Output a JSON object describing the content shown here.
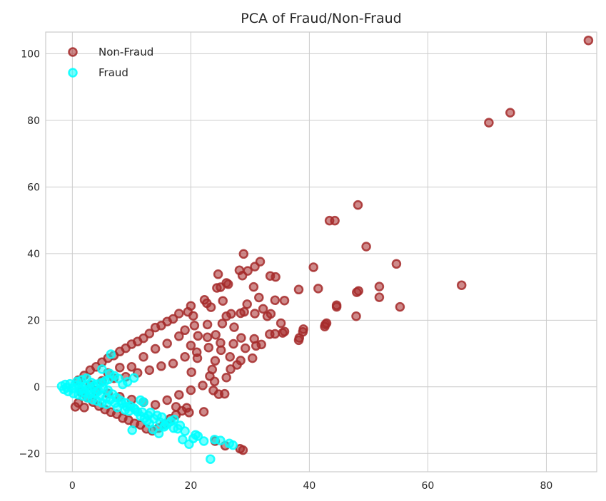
{
  "chart_data": {
    "type": "scatter",
    "title": "PCA of Fraud/Non-Fraud",
    "xlabel": "",
    "ylabel": "",
    "xlim": [
      -4.5,
      88.5
    ],
    "ylim": [
      -25.5,
      106.5
    ],
    "x_ticks": [
      0,
      20,
      40,
      60,
      80
    ],
    "y_ticks": [
      -20,
      0,
      20,
      40,
      60,
      80,
      100
    ],
    "grid": true,
    "legend_position": "top-left",
    "series": [
      {
        "name": "Non-Fraud",
        "color": "#a52a2a",
        "points": [
          [
            87.1,
            104.0
          ],
          [
            70.3,
            79.3
          ],
          [
            73.9,
            82.3
          ],
          [
            48.2,
            54.6
          ],
          [
            43.4,
            49.9
          ],
          [
            44.3,
            49.9
          ],
          [
            49.6,
            42.1
          ],
          [
            54.7,
            36.9
          ],
          [
            40.7,
            35.9
          ],
          [
            65.7,
            30.5
          ],
          [
            51.8,
            30.1
          ],
          [
            51.8,
            26.9
          ],
          [
            55.3,
            24.0
          ],
          [
            48.0,
            28.4
          ],
          [
            48.3,
            28.8
          ],
          [
            41.5,
            29.5
          ],
          [
            38.2,
            29.2
          ],
          [
            44.6,
            24.0
          ],
          [
            44.6,
            24.5
          ],
          [
            47.9,
            21.2
          ],
          [
            42.6,
            18.1
          ],
          [
            42.9,
            19.1
          ],
          [
            42.7,
            18.7
          ],
          [
            38.9,
            16.5
          ],
          [
            39.0,
            17.3
          ],
          [
            38.3,
            14.7
          ],
          [
            38.2,
            14.0
          ],
          [
            35.5,
            16.2
          ],
          [
            35.8,
            16.6
          ],
          [
            35.2,
            19.1
          ],
          [
            34.2,
            15.9
          ],
          [
            33.3,
            15.8
          ],
          [
            32.9,
            21.2
          ],
          [
            33.5,
            21.9
          ],
          [
            32.2,
            23.4
          ],
          [
            30.8,
            22.0
          ],
          [
            31.5,
            26.8
          ],
          [
            30.6,
            30.0
          ],
          [
            29.5,
            24.8
          ],
          [
            29.0,
            22.5
          ],
          [
            28.4,
            22.1
          ],
          [
            31.7,
            37.6
          ],
          [
            30.8,
            36.1
          ],
          [
            29.6,
            34.8
          ],
          [
            28.7,
            33.4
          ],
          [
            28.9,
            39.9
          ],
          [
            28.2,
            35.0
          ],
          [
            33.4,
            33.3
          ],
          [
            34.3,
            33.0
          ],
          [
            34.2,
            26.0
          ],
          [
            35.8,
            25.9
          ],
          [
            26.8,
            21.9
          ],
          [
            26.0,
            31.2
          ],
          [
            25.0,
            29.9
          ],
          [
            24.4,
            29.7
          ],
          [
            25.4,
            25.8
          ],
          [
            26.3,
            30.8
          ],
          [
            24.6,
            33.8
          ],
          [
            22.3,
            26.1
          ],
          [
            22.7,
            25.1
          ],
          [
            23.4,
            23.9
          ],
          [
            27.3,
            17.9
          ],
          [
            30.7,
            14.4
          ],
          [
            31.0,
            12.3
          ],
          [
            31.9,
            12.7
          ],
          [
            30.4,
            8.6
          ],
          [
            29.2,
            11.6
          ],
          [
            28.5,
            14.7
          ],
          [
            27.2,
            12.9
          ],
          [
            25.1,
            11.0
          ],
          [
            26.6,
            9.0
          ],
          [
            27.8,
            6.6
          ],
          [
            28.4,
            7.9
          ],
          [
            26.7,
            5.3
          ],
          [
            24.1,
            7.8
          ],
          [
            23.6,
            5.2
          ],
          [
            23.2,
            3.2
          ],
          [
            22.8,
            14.9
          ],
          [
            21.2,
            15.3
          ],
          [
            20.4,
            21.3
          ],
          [
            20.0,
            24.3
          ],
          [
            19.5,
            22.5
          ],
          [
            20.6,
            18.4
          ],
          [
            24.2,
            15.6
          ],
          [
            25.3,
            19.0
          ],
          [
            26.0,
            21.2
          ],
          [
            22.8,
            18.7
          ],
          [
            21.1,
            8.6
          ],
          [
            20.1,
            4.4
          ],
          [
            25.7,
            -2.1
          ],
          [
            24.7,
            -2.2
          ],
          [
            23.8,
            -1.1
          ],
          [
            22.2,
            -7.5
          ],
          [
            19.3,
            -6.3
          ],
          [
            17.5,
            -6.0
          ],
          [
            28.8,
            -19.0
          ],
          [
            28.3,
            -18.6
          ],
          [
            25.8,
            -17.7
          ],
          [
            24.1,
            -16.3
          ],
          [
            19.7,
            -7.7
          ],
          [
            1.0,
            2.0
          ],
          [
            2.0,
            3.4
          ],
          [
            3.0,
            5.0
          ],
          [
            4.0,
            6.0
          ],
          [
            5.0,
            7.4
          ],
          [
            6.0,
            8.6
          ],
          [
            7.0,
            9.4
          ],
          [
            8.0,
            10.6
          ],
          [
            9.0,
            11.6
          ],
          [
            10.0,
            12.8
          ],
          [
            11.0,
            13.6
          ],
          [
            12.0,
            14.6
          ],
          [
            13.0,
            16.0
          ],
          [
            14.0,
            17.8
          ],
          [
            15.0,
            18.4
          ],
          [
            16.0,
            19.6
          ],
          [
            17.0,
            20.4
          ],
          [
            18.0,
            22.0
          ],
          [
            1.5,
            -1.6
          ],
          [
            2.5,
            -3.2
          ],
          [
            3.5,
            -4.6
          ],
          [
            4.5,
            -5.8
          ],
          [
            5.5,
            -6.8
          ],
          [
            6.5,
            -7.6
          ],
          [
            7.5,
            -8.2
          ],
          [
            8.5,
            -9.4
          ],
          [
            9.5,
            -10.0
          ],
          [
            10.5,
            -11.0
          ],
          [
            11.5,
            -11.4
          ],
          [
            12.5,
            -12.6
          ],
          [
            13.5,
            -13.2
          ],
          [
            14.5,
            -12.4
          ],
          [
            15.5,
            -11.2
          ],
          [
            16.5,
            -9.6
          ],
          [
            17.5,
            -8.4
          ],
          [
            18.5,
            -7.2
          ],
          [
            3.0,
            0.6
          ],
          [
            5.0,
            1.8
          ],
          [
            7.0,
            2.6
          ],
          [
            9.0,
            3.0
          ],
          [
            11.0,
            4.2
          ],
          [
            13.0,
            5.0
          ],
          [
            15.0,
            6.2
          ],
          [
            17.0,
            7.0
          ],
          [
            19.0,
            9.0
          ],
          [
            21.0,
            10.4
          ],
          [
            23.0,
            11.8
          ],
          [
            25.0,
            13.2
          ],
          [
            4.0,
            -1.2
          ],
          [
            6.0,
            -2.0
          ],
          [
            8.0,
            -3.0
          ],
          [
            10.0,
            -3.8
          ],
          [
            12.0,
            -4.6
          ],
          [
            14.0,
            -5.4
          ],
          [
            16.0,
            -4.0
          ],
          [
            18.0,
            -2.4
          ],
          [
            20.0,
            -1.0
          ],
          [
            22.0,
            0.4
          ],
          [
            24.0,
            1.6
          ],
          [
            26.0,
            2.8
          ],
          [
            12.0,
            9.0
          ],
          [
            14.0,
            11.4
          ],
          [
            16.0,
            13.0
          ],
          [
            18.0,
            15.2
          ],
          [
            20.0,
            12.4
          ],
          [
            19.0,
            17.0
          ],
          [
            10.0,
            6.0
          ],
          [
            8.0,
            5.8
          ],
          [
            6.0,
            4.2
          ],
          [
            2.0,
            -6.2
          ],
          [
            0.5,
            -6.0
          ],
          [
            1.0,
            -4.8
          ]
        ]
      },
      {
        "name": "Fraud",
        "color": "#00ffff",
        "points": [
          [
            23.3,
            -21.7
          ],
          [
            22.2,
            -16.3
          ],
          [
            25.0,
            -16.1
          ],
          [
            26.5,
            -17.0
          ],
          [
            27.1,
            -17.5
          ],
          [
            20.4,
            -15.5
          ],
          [
            19.7,
            -17.2
          ],
          [
            18.6,
            -15.8
          ],
          [
            20.8,
            -14.4
          ],
          [
            19.0,
            -13.3
          ],
          [
            17.1,
            -12.4
          ],
          [
            15.5,
            -12.0
          ],
          [
            15.6,
            -11.6
          ],
          [
            14.6,
            -14.0
          ],
          [
            13.6,
            -12.8
          ],
          [
            13.0,
            -11.0
          ],
          [
            12.2,
            -9.4
          ],
          [
            12.6,
            -10.2
          ],
          [
            11.5,
            -8.8
          ],
          [
            10.1,
            -13.0
          ],
          [
            9.2,
            -6.0
          ],
          [
            10.4,
            -6.4
          ],
          [
            8.4,
            -5.0
          ],
          [
            7.6,
            -6.2
          ],
          [
            11.5,
            -4.0
          ],
          [
            12.0,
            -4.6
          ],
          [
            10.4,
            2.7
          ],
          [
            9.3,
            1.5
          ],
          [
            8.5,
            0.7
          ],
          [
            6.5,
            9.8
          ],
          [
            5.0,
            5.3
          ],
          [
            6.3,
            4.0
          ],
          [
            6.1,
            2.2
          ],
          [
            5.5,
            1.7
          ],
          [
            4.8,
            1.2
          ],
          [
            7.1,
            3.3
          ],
          [
            7.8,
            2.5
          ],
          [
            16.6,
            -10.4
          ],
          [
            17.2,
            -9.8
          ],
          [
            14.3,
            -8.6
          ],
          [
            15.1,
            -9.1
          ],
          [
            13.2,
            -7.7
          ],
          [
            11.0,
            -7.5
          ],
          [
            9.6,
            -7.3
          ],
          [
            8.9,
            -6.9
          ],
          [
            7.2,
            -4.9
          ],
          [
            6.4,
            -3.9
          ],
          [
            5.7,
            -3.4
          ],
          [
            4.7,
            -2.6
          ],
          [
            3.9,
            -2.0
          ],
          [
            3.2,
            -1.4
          ],
          [
            2.5,
            -0.9
          ],
          [
            1.8,
            -0.4
          ],
          [
            1.1,
            0.2
          ],
          [
            0.4,
            0.6
          ],
          [
            -0.4,
            0.9
          ],
          [
            -1.2,
            0.7
          ],
          [
            -1.8,
            0.2
          ],
          [
            -1.4,
            -0.8
          ],
          [
            -0.7,
            -1.4
          ],
          [
            0.2,
            -2.0
          ],
          [
            1.0,
            -2.4
          ],
          [
            1.8,
            -2.8
          ],
          [
            2.6,
            -3.3
          ],
          [
            3.4,
            -3.8
          ],
          [
            4.2,
            -4.3
          ],
          [
            5.0,
            -4.8
          ],
          [
            5.8,
            -5.2
          ],
          [
            0.8,
            1.6
          ],
          [
            1.6,
            2.1
          ],
          [
            2.4,
            2.6
          ],
          [
            3.2,
            1.3
          ],
          [
            4.0,
            0.8
          ],
          [
            0.0,
            -0.5
          ],
          [
            -1.0,
            -0.2
          ],
          [
            2.0,
            -1.6
          ],
          [
            3.0,
            -2.2
          ],
          [
            4.4,
            -1.2
          ],
          [
            5.2,
            -0.4
          ],
          [
            6.0,
            -1.0
          ],
          [
            6.8,
            -2.2
          ],
          [
            7.4,
            -3.2
          ],
          [
            8.2,
            -4.2
          ],
          [
            9.0,
            -4.8
          ],
          [
            9.8,
            -5.8
          ],
          [
            10.6,
            -6.8
          ],
          [
            11.8,
            -7.6
          ],
          [
            12.8,
            -8.6
          ],
          [
            13.8,
            -9.6
          ],
          [
            14.8,
            -10.6
          ],
          [
            16.0,
            -11.2
          ],
          [
            17.8,
            -12.6
          ],
          [
            18.2,
            -11.6
          ],
          [
            21.2,
            -14.8
          ],
          [
            24.0,
            -15.8
          ],
          [
            2.2,
            0.4
          ],
          [
            3.6,
            0.2
          ],
          [
            1.4,
            -1.0
          ]
        ]
      }
    ]
  }
}
